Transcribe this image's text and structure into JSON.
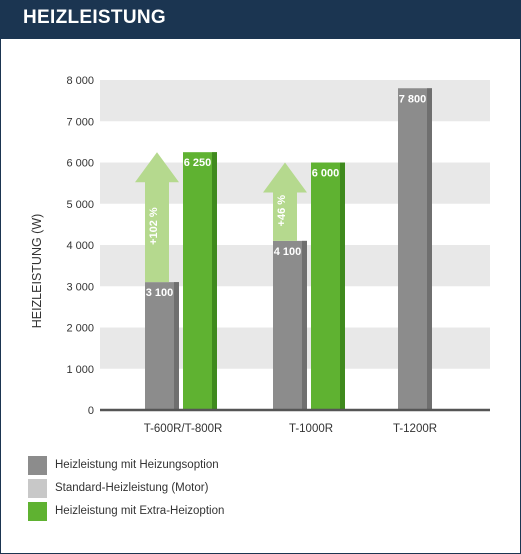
{
  "header": {
    "title": "HEIZLEISTUNG"
  },
  "colors": {
    "header_bg": "#1b3551",
    "gray_bar": "#8c8c8c",
    "gray_bar_shade": "#6f6f6f",
    "light_green_arrow": "#b5d98e",
    "green_bar": "#5fb231",
    "green_bar_shade": "#3f8a1d",
    "light_gray_legend": "#c8c8c8",
    "grid_band": "#e8e8e8",
    "axis_line": "#555555"
  },
  "chart_data": {
    "type": "bar",
    "title": "",
    "ylabel": "HEIZLEISTUNG (W)",
    "xlabel": "",
    "ylim": [
      0,
      8000
    ],
    "yticks": [
      "0",
      "1 000",
      "2 000",
      "3 000",
      "4 000",
      "5 000",
      "6 000",
      "7 000",
      "8 000"
    ],
    "categories": [
      "T-600R/T-800R",
      "T-1000R",
      "T-1200R"
    ],
    "series": [
      {
        "name": "Heizleistung mit Heizungsoption",
        "color": "#8c8c8c",
        "values": [
          3100,
          4100,
          7800
        ],
        "labels": [
          "3 100",
          "4 100",
          "7 800"
        ]
      },
      {
        "name": "Heizleistung mit Extra-Heizoption",
        "color": "#5fb231",
        "values": [
          6250,
          6000,
          null
        ],
        "labels": [
          "6 250",
          "6 000",
          ""
        ]
      }
    ],
    "annotations": [
      {
        "category": "T-600R/T-800R",
        "from": 3100,
        "to": 6250,
        "text": "+102 %"
      },
      {
        "category": "T-1000R",
        "from": 4100,
        "to": 6000,
        "text": "+46 %"
      }
    ],
    "legend": {
      "position": "bottom-left",
      "entries": [
        {
          "label": "Heizleistung mit Heizungsoption",
          "color": "#8c8c8c"
        },
        {
          "label": "Standard-Heizleistung (Motor)",
          "color": "#c8c8c8"
        },
        {
          "label": "Heizleistung mit Extra-Heizoption",
          "color": "#5fb231"
        }
      ]
    },
    "grid": "alternating horizontal bands"
  }
}
